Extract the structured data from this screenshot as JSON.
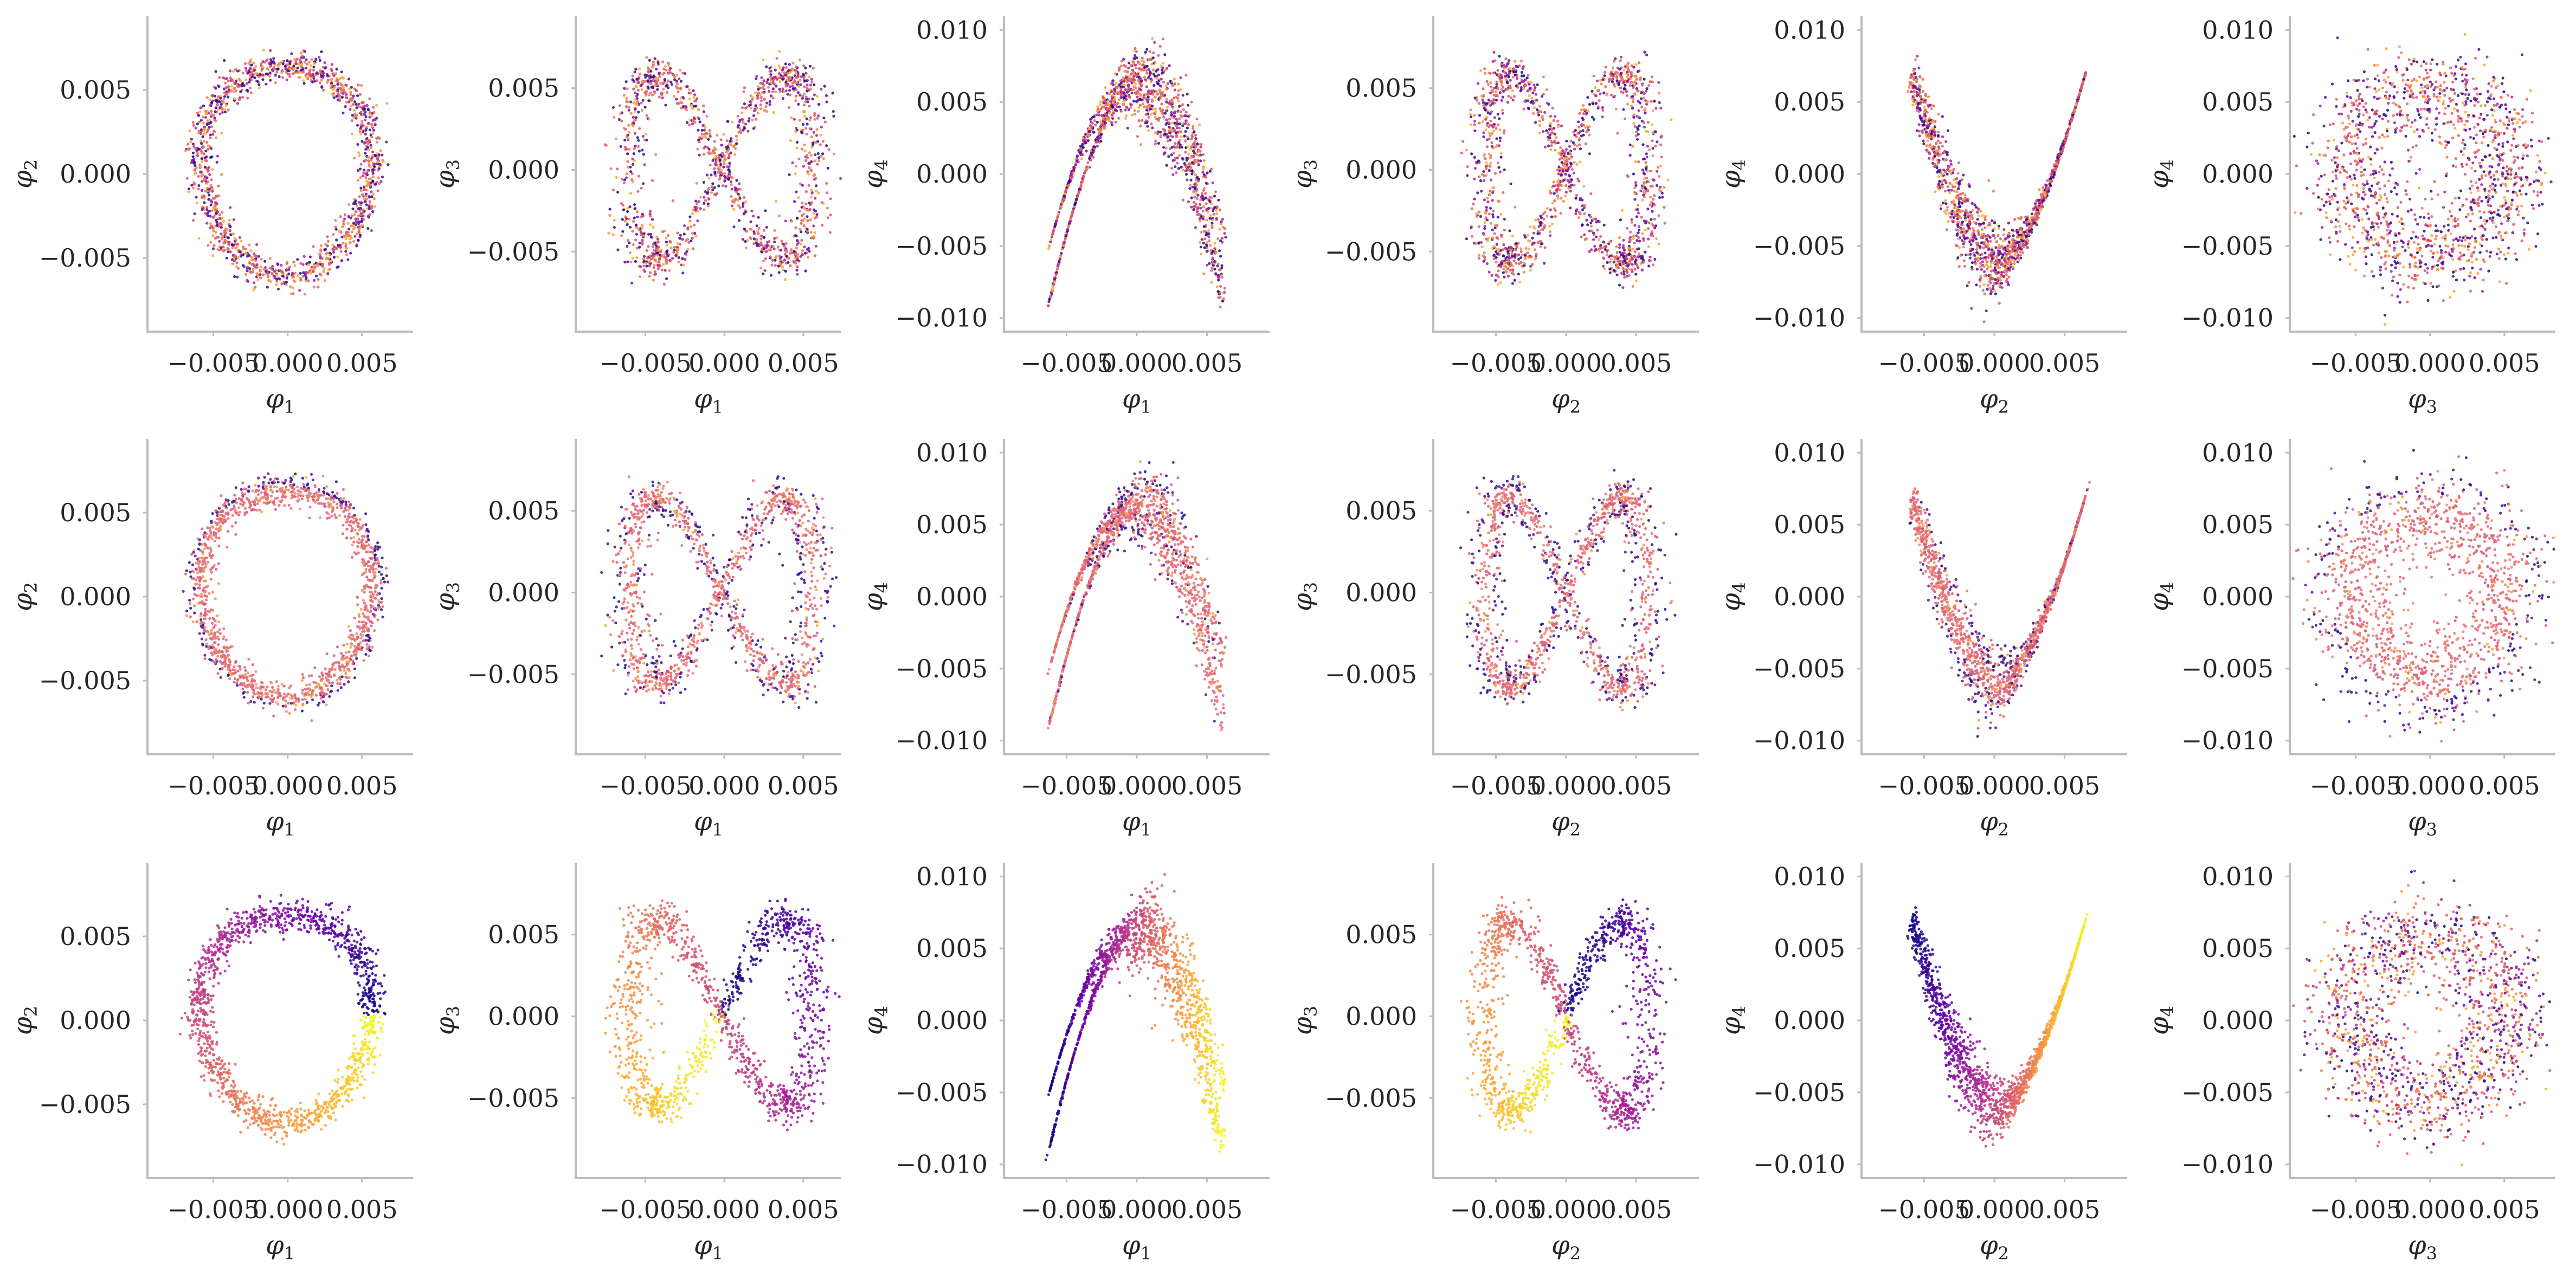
{
  "figure": {
    "rows": 3,
    "cols": 6,
    "colormap": [
      "#0d0887",
      "#6a00a8",
      "#b12a90",
      "#e16462",
      "#fca636",
      "#f0f921"
    ]
  },
  "chart_data": [
    {
      "id": "r1c1",
      "type": "scatter",
      "shape": "ring",
      "xlabel": "φ1",
      "ylabel": "φ2",
      "xlim": [
        -0.009,
        0.008
      ],
      "ylim": [
        -0.009,
        0.009
      ],
      "xticks": [
        "−0.005",
        "0.000",
        "0.005"
      ],
      "xtick_values": [
        -0.005,
        0.0,
        0.005
      ],
      "yticks": [
        "0.005",
        "0.000",
        "−0.005"
      ],
      "ytick_values": [
        0.005,
        0.0,
        -0.005
      ],
      "params": {
        "cx": -0.0001,
        "cy": 0.0003,
        "rx": 0.0058,
        "ry": 0.0062,
        "thick": 0.00045
      },
      "coloring": "mixed"
    },
    {
      "id": "r1c2",
      "type": "scatter",
      "shape": "lemniscate",
      "xlabel": "φ1",
      "ylabel": "φ3",
      "xlim": [
        -0.009,
        0.007
      ],
      "ylim": [
        -0.0095,
        0.009
      ],
      "xticks": [
        "−0.005",
        "0.000",
        "0.005"
      ],
      "xtick_values": [
        -0.005,
        0.0,
        0.005
      ],
      "yticks": [
        "0.005",
        "0.000",
        "−0.005"
      ],
      "ytick_values": [
        0.005,
        0.0,
        -0.005
      ],
      "params": {
        "cx": -0.0002,
        "cy": 0.0002,
        "ax": 0.0058,
        "ay": 0.0058,
        "thick": 0.0007
      },
      "coloring": "mixed"
    },
    {
      "id": "r1c3",
      "type": "scatter",
      "shape": "arch",
      "xlabel": "φ1",
      "ylabel": "φ4",
      "xlim": [
        -0.009,
        0.009
      ],
      "ylim": [
        -0.0105,
        0.0105
      ],
      "xticks": [
        "−0.005",
        "0.000",
        "0.005"
      ],
      "xtick_values": [
        -0.005,
        0.0,
        0.005
      ],
      "yticks": [
        "0.010",
        "0.005",
        "0.000",
        "−0.005",
        "−0.010"
      ],
      "ytick_values": [
        0.01,
        0.005,
        0.0,
        -0.005,
        -0.01
      ],
      "params": {
        "cx": 0.0,
        "top": 0.0068,
        "bottom": -0.0068,
        "half": 0.0062,
        "thick": 0.0009
      },
      "coloring": "mixed"
    },
    {
      "id": "r1c4",
      "type": "scatter",
      "shape": "lemniscate",
      "xlabel": "φ2",
      "ylabel": "φ3",
      "xlim": [
        -0.009,
        0.009
      ],
      "ylim": [
        -0.0095,
        0.009
      ],
      "xticks": [
        "−0.005",
        "0.000",
        "0.005"
      ],
      "xtick_values": [
        -0.005,
        0.0,
        0.005
      ],
      "yticks": [
        "0.005",
        "0.000",
        "−0.005"
      ],
      "ytick_values": [
        0.005,
        0.0,
        -0.005
      ],
      "params": {
        "cx": 0.0,
        "cy": 0.0,
        "ax": 0.0058,
        "ay": 0.006,
        "thick": 0.0007
      },
      "coloring": "mixed"
    },
    {
      "id": "r1c5",
      "type": "scatter",
      "shape": "valley",
      "xlabel": "φ2",
      "ylabel": "φ4",
      "xlim": [
        -0.009,
        0.009
      ],
      "ylim": [
        -0.0105,
        0.0105
      ],
      "xticks": [
        "−0.005",
        "0.000",
        "0.005"
      ],
      "xtick_values": [
        -0.005,
        0.0,
        0.005
      ],
      "yticks": [
        "0.010",
        "0.005",
        "0.000",
        "−0.005",
        "−0.010"
      ],
      "ytick_values": [
        0.01,
        0.005,
        0.0,
        -0.005,
        -0.01
      ],
      "params": {
        "cx": 0.0003,
        "top": 0.007,
        "bottom": -0.0065,
        "half": 0.0062,
        "thick": 0.0009
      },
      "coloring": "mixed"
    },
    {
      "id": "r1c6",
      "type": "scatter",
      "shape": "ring",
      "xlabel": "φ3",
      "ylabel": "φ4",
      "xlim": [
        -0.009,
        0.008
      ],
      "ylim": [
        -0.0105,
        0.0105
      ],
      "xticks": [
        "−0.005",
        "0.000",
        "0.005"
      ],
      "xtick_values": [
        -0.005,
        0.0,
        0.005
      ],
      "yticks": [
        "0.010",
        "0.005",
        "0.000",
        "−0.005",
        "−0.010"
      ],
      "ytick_values": [
        0.01,
        0.005,
        0.0,
        -0.005,
        -0.01
      ],
      "params": {
        "cx": -0.0002,
        "cy": 0.0002,
        "rx": 0.0055,
        "ry": 0.006,
        "thick": 0.0016
      },
      "coloring": "mixed"
    },
    {
      "id": "r2c1",
      "type": "scatter",
      "shape": "ring",
      "xlabel": "φ1",
      "ylabel": "φ2",
      "xlim": [
        -0.009,
        0.008
      ],
      "ylim": [
        -0.009,
        0.009
      ],
      "xticks": [
        "−0.005",
        "0.000",
        "0.005"
      ],
      "xtick_values": [
        -0.005,
        0.0,
        0.005
      ],
      "yticks": [
        "0.005",
        "0.000",
        "−0.005"
      ],
      "ytick_values": [
        0.005,
        0.0,
        -0.005
      ],
      "params": {
        "cx": -0.0001,
        "cy": 0.0003,
        "rx": 0.0058,
        "ry": 0.0062,
        "thick": 0.00045
      },
      "coloring": "pink"
    },
    {
      "id": "r2c2",
      "type": "scatter",
      "shape": "lemniscate",
      "xlabel": "φ1",
      "ylabel": "φ3",
      "xlim": [
        -0.009,
        0.007
      ],
      "ylim": [
        -0.0095,
        0.009
      ],
      "xticks": [
        "−0.005",
        "0.000",
        "0.005"
      ],
      "xtick_values": [
        -0.005,
        0.0,
        0.005
      ],
      "yticks": [
        "0.005",
        "0.000",
        "−0.005"
      ],
      "ytick_values": [
        0.005,
        0.0,
        -0.005
      ],
      "params": {
        "cx": -0.0002,
        "cy": 0.0002,
        "ax": 0.0058,
        "ay": 0.0058,
        "thick": 0.0007
      },
      "coloring": "pink"
    },
    {
      "id": "r2c3",
      "type": "scatter",
      "shape": "arch",
      "xlabel": "φ1",
      "ylabel": "φ4",
      "xlim": [
        -0.009,
        0.009
      ],
      "ylim": [
        -0.0105,
        0.0105
      ],
      "xticks": [
        "−0.005",
        "0.000",
        "0.005"
      ],
      "xtick_values": [
        -0.005,
        0.0,
        0.005
      ],
      "yticks": [
        "0.010",
        "0.005",
        "0.000",
        "−0.005",
        "−0.010"
      ],
      "ytick_values": [
        0.01,
        0.005,
        0.0,
        -0.005,
        -0.01
      ],
      "params": {
        "cx": 0.0,
        "top": 0.0068,
        "bottom": -0.0068,
        "half": 0.0062,
        "thick": 0.0009
      },
      "coloring": "pink"
    },
    {
      "id": "r2c4",
      "type": "scatter",
      "shape": "lemniscate",
      "xlabel": "φ2",
      "ylabel": "φ3",
      "xlim": [
        -0.009,
        0.009
      ],
      "ylim": [
        -0.0095,
        0.009
      ],
      "xticks": [
        "−0.005",
        "0.000",
        "0.005"
      ],
      "xtick_values": [
        -0.005,
        0.0,
        0.005
      ],
      "yticks": [
        "0.005",
        "0.000",
        "−0.005"
      ],
      "ytick_values": [
        0.005,
        0.0,
        -0.005
      ],
      "params": {
        "cx": 0.0,
        "cy": 0.0,
        "ax": 0.0058,
        "ay": 0.006,
        "thick": 0.0007
      },
      "coloring": "pink"
    },
    {
      "id": "r2c5",
      "type": "scatter",
      "shape": "valley",
      "xlabel": "φ2",
      "ylabel": "φ4",
      "xlim": [
        -0.009,
        0.009
      ],
      "ylim": [
        -0.0105,
        0.0105
      ],
      "xticks": [
        "−0.005",
        "0.000",
        "0.005"
      ],
      "xtick_values": [
        -0.005,
        0.0,
        0.005
      ],
      "yticks": [
        "0.010",
        "0.005",
        "0.000",
        "−0.005",
        "−0.010"
      ],
      "ytick_values": [
        0.01,
        0.005,
        0.0,
        -0.005,
        -0.01
      ],
      "params": {
        "cx": 0.0003,
        "top": 0.007,
        "bottom": -0.0065,
        "half": 0.0062,
        "thick": 0.0009
      },
      "coloring": "pink"
    },
    {
      "id": "r2c6",
      "type": "scatter",
      "shape": "ring",
      "xlabel": "φ3",
      "ylabel": "φ4",
      "xlim": [
        -0.009,
        0.008
      ],
      "ylim": [
        -0.0105,
        0.0105
      ],
      "xticks": [
        "−0.005",
        "0.000",
        "0.005"
      ],
      "xtick_values": [
        -0.005,
        0.0,
        0.005
      ],
      "yticks": [
        "0.010",
        "0.005",
        "0.000",
        "−0.005",
        "−0.010"
      ],
      "ytick_values": [
        0.01,
        0.005,
        0.0,
        -0.005,
        -0.01
      ],
      "params": {
        "cx": -0.0002,
        "cy": 0.0002,
        "rx": 0.0055,
        "ry": 0.006,
        "thick": 0.0016
      },
      "coloring": "pink"
    },
    {
      "id": "r3c1",
      "type": "scatter",
      "shape": "ring",
      "xlabel": "φ1",
      "ylabel": "φ2",
      "xlim": [
        -0.009,
        0.008
      ],
      "ylim": [
        -0.009,
        0.009
      ],
      "xticks": [
        "−0.005",
        "0.000",
        "0.005"
      ],
      "xtick_values": [
        -0.005,
        0.0,
        0.005
      ],
      "yticks": [
        "0.005",
        "0.000",
        "−0.005"
      ],
      "ytick_values": [
        0.005,
        0.0,
        -0.005
      ],
      "params": {
        "cx": -0.0001,
        "cy": 0.0003,
        "rx": 0.0058,
        "ry": 0.0062,
        "thick": 0.00045
      },
      "coloring": "gradient"
    },
    {
      "id": "r3c2",
      "type": "scatter",
      "shape": "lemniscate",
      "xlabel": "φ1",
      "ylabel": "φ3",
      "xlim": [
        -0.009,
        0.007
      ],
      "ylim": [
        -0.0095,
        0.009
      ],
      "xticks": [
        "−0.005",
        "0.000",
        "0.005"
      ],
      "xtick_values": [
        -0.005,
        0.0,
        0.005
      ],
      "yticks": [
        "0.005",
        "0.000",
        "−0.005"
      ],
      "ytick_values": [
        0.005,
        0.0,
        -0.005
      ],
      "params": {
        "cx": -0.0002,
        "cy": 0.0002,
        "ax": 0.0058,
        "ay": 0.0058,
        "thick": 0.0007
      },
      "coloring": "gradient"
    },
    {
      "id": "r3c3",
      "type": "scatter",
      "shape": "arch",
      "xlabel": "φ1",
      "ylabel": "φ4",
      "xlim": [
        -0.009,
        0.009
      ],
      "ylim": [
        -0.0105,
        0.0105
      ],
      "xticks": [
        "−0.005",
        "0.000",
        "0.005"
      ],
      "xtick_values": [
        -0.005,
        0.0,
        0.005
      ],
      "yticks": [
        "0.010",
        "0.005",
        "0.000",
        "−0.005",
        "−0.010"
      ],
      "ytick_values": [
        0.01,
        0.005,
        0.0,
        -0.005,
        -0.01
      ],
      "params": {
        "cx": 0.0,
        "top": 0.0068,
        "bottom": -0.0068,
        "half": 0.0062,
        "thick": 0.0009
      },
      "coloring": "gradient"
    },
    {
      "id": "r3c4",
      "type": "scatter",
      "shape": "lemniscate",
      "xlabel": "φ2",
      "ylabel": "φ3",
      "xlim": [
        -0.009,
        0.009
      ],
      "ylim": [
        -0.0095,
        0.009
      ],
      "xticks": [
        "−0.005",
        "0.000",
        "0.005"
      ],
      "xtick_values": [
        -0.005,
        0.0,
        0.005
      ],
      "yticks": [
        "0.005",
        "0.000",
        "−0.005"
      ],
      "ytick_values": [
        0.005,
        0.0,
        -0.005
      ],
      "params": {
        "cx": 0.0,
        "cy": 0.0,
        "ax": 0.0058,
        "ay": 0.006,
        "thick": 0.0007
      },
      "coloring": "gradient"
    },
    {
      "id": "r3c5",
      "type": "scatter",
      "shape": "valley",
      "xlabel": "φ2",
      "ylabel": "φ4",
      "xlim": [
        -0.009,
        0.009
      ],
      "ylim": [
        -0.0105,
        0.0105
      ],
      "xticks": [
        "−0.005",
        "0.000",
        "0.005"
      ],
      "xtick_values": [
        -0.005,
        0.0,
        0.005
      ],
      "yticks": [
        "0.010",
        "0.005",
        "0.000",
        "−0.005",
        "−0.010"
      ],
      "ytick_values": [
        0.01,
        0.005,
        0.0,
        -0.005,
        -0.01
      ],
      "params": {
        "cx": 0.0003,
        "top": 0.007,
        "bottom": -0.0065,
        "half": 0.0062,
        "thick": 0.0009
      },
      "coloring": "gradient"
    },
    {
      "id": "r3c6",
      "type": "scatter",
      "shape": "ring",
      "xlabel": "φ3",
      "ylabel": "φ4",
      "xlim": [
        -0.009,
        0.008
      ],
      "ylim": [
        -0.0105,
        0.0105
      ],
      "xticks": [
        "−0.005",
        "0.000",
        "0.005"
      ],
      "xtick_values": [
        -0.005,
        0.0,
        0.005
      ],
      "yticks": [
        "0.010",
        "0.005",
        "0.000",
        "−0.005",
        "−0.010"
      ],
      "ytick_values": [
        0.01,
        0.005,
        0.0,
        -0.005,
        -0.01
      ],
      "params": {
        "cx": -0.0002,
        "cy": 0.0002,
        "rx": 0.0055,
        "ry": 0.006,
        "thick": 0.0016
      },
      "coloring": "mixed"
    }
  ]
}
